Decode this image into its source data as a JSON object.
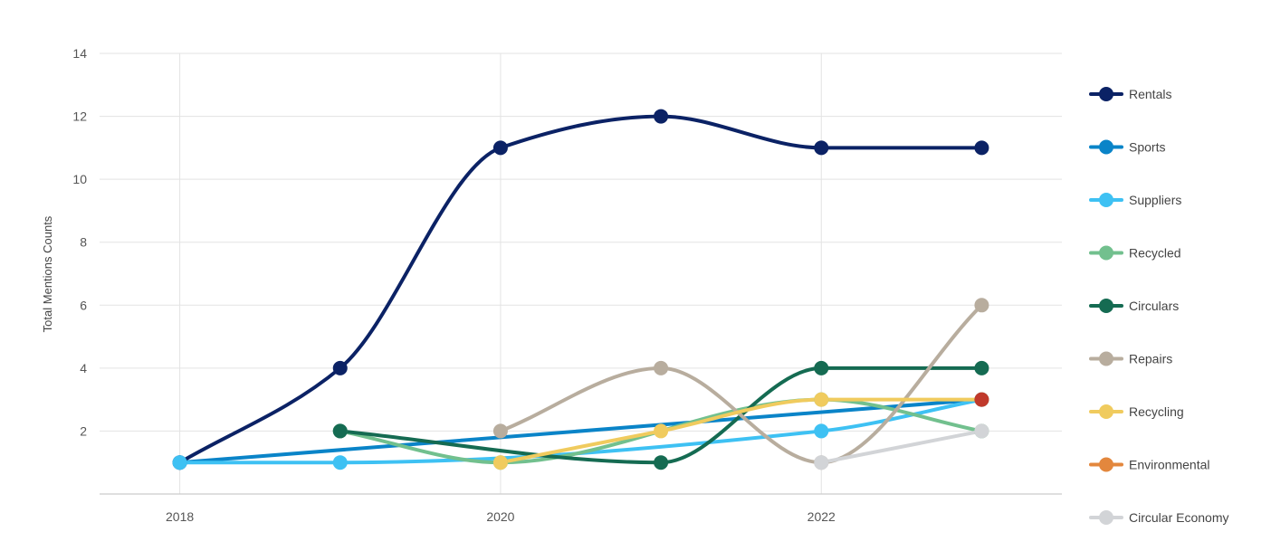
{
  "chart_data": {
    "type": "line",
    "title": "",
    "xlabel": "",
    "ylabel": "Total Mentions Counts",
    "xlim": [
      2017.5,
      2023.5
    ],
    "ylim": [
      0,
      14
    ],
    "x_ticks": [
      "2018",
      "2020",
      "2022"
    ],
    "y_ticks": [
      "2",
      "4",
      "6",
      "8",
      "10",
      "12",
      "14"
    ],
    "grid": true,
    "legend_position": "right",
    "series": [
      {
        "name": "Rentals",
        "color": "#0b2265",
        "curve": "smooth",
        "points": [
          [
            2018,
            1
          ],
          [
            2019,
            4
          ],
          [
            2020,
            11
          ],
          [
            2021,
            12
          ],
          [
            2022,
            11
          ],
          [
            2023,
            11
          ]
        ]
      },
      {
        "name": "Sports",
        "color": "#0a84c8",
        "curve": "straight",
        "points": [
          [
            2018,
            1
          ],
          [
            2023,
            3
          ]
        ]
      },
      {
        "name": "Suppliers",
        "color": "#3ec1f3",
        "curve": "smooth",
        "points": [
          [
            2018,
            1
          ],
          [
            2019,
            1
          ],
          [
            2022,
            2
          ],
          [
            2023,
            3
          ]
        ]
      },
      {
        "name": "Recycled",
        "color": "#72c08e",
        "curve": "smooth",
        "points": [
          [
            2019,
            2
          ],
          [
            2020,
            1
          ],
          [
            2022,
            3
          ],
          [
            2023,
            2
          ]
        ]
      },
      {
        "name": "Circulars",
        "color": "#156b52",
        "curve": "smooth",
        "points": [
          [
            2019,
            2
          ],
          [
            2021,
            1
          ],
          [
            2022,
            4
          ],
          [
            2023,
            4
          ]
        ]
      },
      {
        "name": "Repairs",
        "color": "#b8ad9e",
        "curve": "smooth",
        "points": [
          [
            2020,
            2
          ],
          [
            2021,
            4
          ],
          [
            2022,
            1
          ],
          [
            2023,
            6
          ]
        ]
      },
      {
        "name": "Recycling",
        "color": "#f0cb5e",
        "curve": "smooth",
        "points": [
          [
            2020,
            1
          ],
          [
            2021,
            2
          ],
          [
            2022,
            3
          ],
          [
            2023,
            3
          ]
        ]
      },
      {
        "name": "Environmental",
        "color": "#e3873d",
        "curve": "straight",
        "points": [
          [
            2023,
            3
          ]
        ],
        "point_color": "#c0392b"
      },
      {
        "name": "Circular Economy",
        "color": "#d2d4d7",
        "curve": "straight",
        "points": [
          [
            2022,
            1
          ],
          [
            2023,
            2
          ]
        ]
      }
    ]
  }
}
